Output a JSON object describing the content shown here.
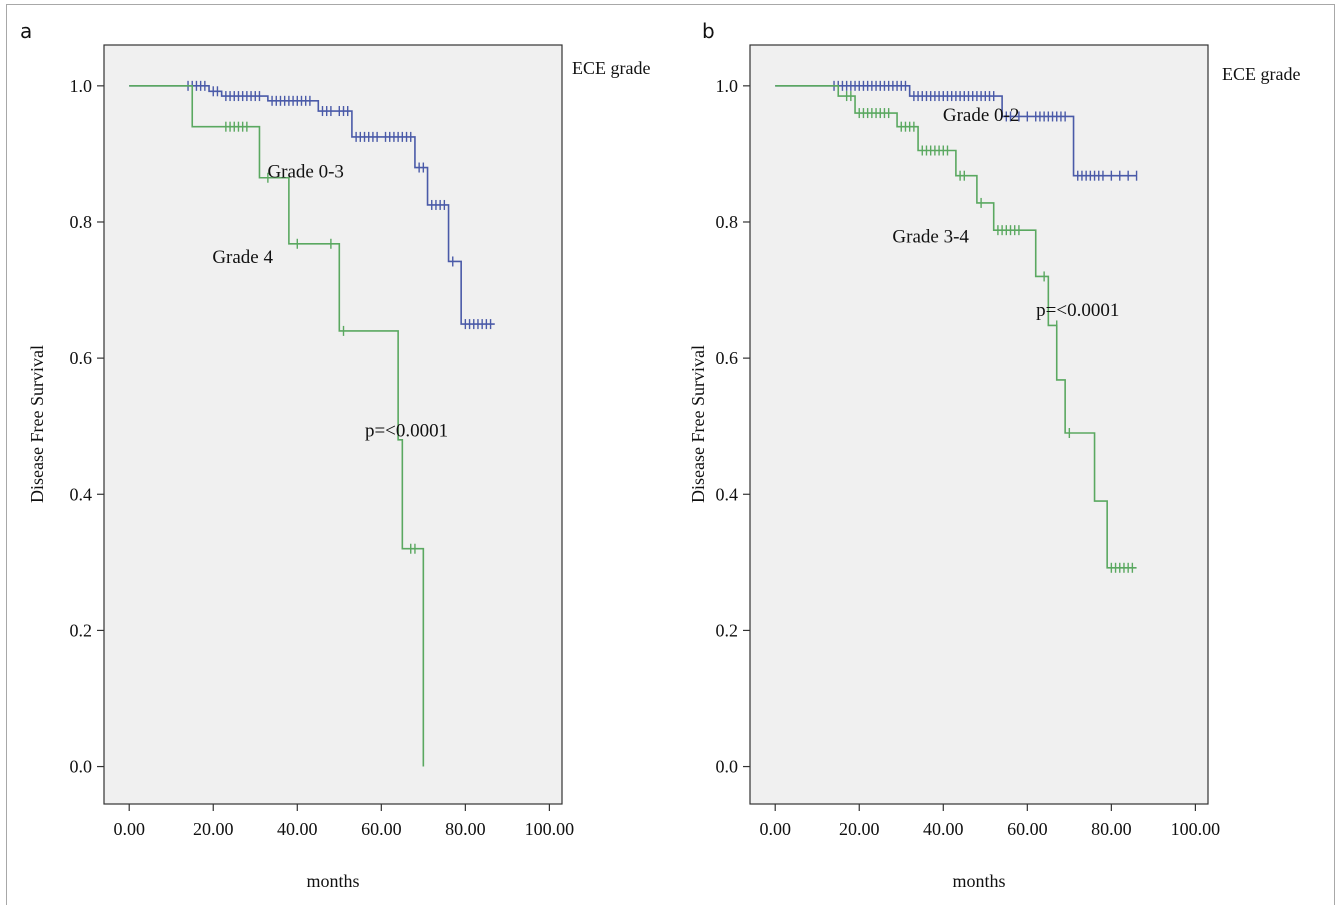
{
  "figure": {
    "panels": [
      "a",
      "b"
    ]
  },
  "chart_data": [
    {
      "panel": "a",
      "type": "line",
      "subtype": "kaplan-meier",
      "title": "",
      "xlabel": "months",
      "ylabel": "Disease Free Survival",
      "xlim": [
        -6,
        103
      ],
      "ylim": [
        -0.055,
        1.06
      ],
      "xticks": [
        0,
        20,
        40,
        60,
        80,
        100
      ],
      "xtick_labels": [
        "0.00",
        "20.00",
        "40.00",
        "60.00",
        "80.00",
        "100.00"
      ],
      "yticks": [
        0,
        0.2,
        0.4,
        0.6,
        0.8,
        1.0
      ],
      "ytick_labels": [
        "0.0",
        "0.2",
        "0.4",
        "0.6",
        "0.8",
        "1.0"
      ],
      "legend_title": "ECE grade",
      "grid": false,
      "series": [
        {
          "name": "Grade 0-3",
          "color": "#4a5aa8",
          "steps": [
            [
              0,
              1.0
            ],
            [
              19,
              0.992
            ],
            [
              22,
              0.985
            ],
            [
              33,
              0.978
            ],
            [
              45,
              0.963
            ],
            [
              53,
              0.925
            ],
            [
              68,
              0.88
            ],
            [
              71,
              0.825
            ],
            [
              76,
              0.742
            ],
            [
              79,
              0.65
            ],
            [
              87,
              0.65
            ]
          ],
          "censored": [
            [
              14,
              1.0
            ],
            [
              15,
              1.0
            ],
            [
              16,
              1.0
            ],
            [
              17,
              1.0
            ],
            [
              18,
              1.0
            ],
            [
              20,
              0.992
            ],
            [
              21,
              0.992
            ],
            [
              23,
              0.985
            ],
            [
              24,
              0.985
            ],
            [
              25,
              0.985
            ],
            [
              26,
              0.985
            ],
            [
              27,
              0.985
            ],
            [
              28,
              0.985
            ],
            [
              29,
              0.985
            ],
            [
              30,
              0.985
            ],
            [
              31,
              0.985
            ],
            [
              34,
              0.978
            ],
            [
              35,
              0.978
            ],
            [
              36,
              0.978
            ],
            [
              37,
              0.978
            ],
            [
              38,
              0.978
            ],
            [
              39,
              0.978
            ],
            [
              40,
              0.978
            ],
            [
              41,
              0.978
            ],
            [
              42,
              0.978
            ],
            [
              43,
              0.978
            ],
            [
              46,
              0.963
            ],
            [
              47,
              0.963
            ],
            [
              48,
              0.963
            ],
            [
              50,
              0.963
            ],
            [
              51,
              0.963
            ],
            [
              52,
              0.963
            ],
            [
              54,
              0.925
            ],
            [
              55,
              0.925
            ],
            [
              56,
              0.925
            ],
            [
              57,
              0.925
            ],
            [
              58,
              0.925
            ],
            [
              59,
              0.925
            ],
            [
              61,
              0.925
            ],
            [
              62,
              0.925
            ],
            [
              63,
              0.925
            ],
            [
              64,
              0.925
            ],
            [
              65,
              0.925
            ],
            [
              66,
              0.925
            ],
            [
              67,
              0.925
            ],
            [
              69,
              0.88
            ],
            [
              70,
              0.88
            ],
            [
              72,
              0.825
            ],
            [
              73,
              0.825
            ],
            [
              74,
              0.825
            ],
            [
              75,
              0.825
            ],
            [
              77,
              0.742
            ],
            [
              80,
              0.65
            ],
            [
              81,
              0.65
            ],
            [
              82,
              0.65
            ],
            [
              83,
              0.65
            ],
            [
              84,
              0.65
            ],
            [
              85,
              0.65
            ],
            [
              86,
              0.65
            ]
          ]
        },
        {
          "name": "Grade 4",
          "color": "#5aa860",
          "steps": [
            [
              0,
              1.0
            ],
            [
              15,
              0.94
            ],
            [
              31,
              0.865
            ],
            [
              38,
              0.768
            ],
            [
              50,
              0.64
            ],
            [
              64,
              0.48
            ],
            [
              65,
              0.32
            ],
            [
              70,
              0.0
            ]
          ],
          "censored": [
            [
              23,
              0.94
            ],
            [
              24,
              0.94
            ],
            [
              25,
              0.94
            ],
            [
              26,
              0.94
            ],
            [
              27,
              0.94
            ],
            [
              28,
              0.94
            ],
            [
              33,
              0.865
            ],
            [
              40,
              0.768
            ],
            [
              48,
              0.768
            ],
            [
              51,
              0.64
            ],
            [
              67,
              0.32
            ],
            [
              68,
              0.32
            ]
          ]
        }
      ],
      "annotations": [
        {
          "text": "Grade 0-3",
          "x": 42,
          "y": 0.865
        },
        {
          "text": "Grade 4",
          "x": 27,
          "y": 0.74
        },
        {
          "text": "p=<0.0001",
          "x": 66,
          "y": 0.485
        }
      ]
    },
    {
      "panel": "b",
      "type": "line",
      "subtype": "kaplan-meier",
      "title": "",
      "xlabel": "months",
      "ylabel": "Disease Free Survival",
      "xlim": [
        -6,
        103
      ],
      "ylim": [
        -0.055,
        1.06
      ],
      "xticks": [
        0,
        20,
        40,
        60,
        80,
        100
      ],
      "xtick_labels": [
        "0.00",
        "20.00",
        "40.00",
        "60.00",
        "80.00",
        "100.00"
      ],
      "yticks": [
        0,
        0.2,
        0.4,
        0.6,
        0.8,
        1.0
      ],
      "ytick_labels": [
        "0.0",
        "0.2",
        "0.4",
        "0.6",
        "0.8",
        "1.0"
      ],
      "legend_title": "ECE grade",
      "grid": false,
      "series": [
        {
          "name": "Grade 0-2",
          "color": "#4a5aa8",
          "steps": [
            [
              0,
              1.0
            ],
            [
              32,
              0.985
            ],
            [
              54,
              0.955
            ],
            [
              71,
              0.868
            ],
            [
              86,
              0.868
            ]
          ],
          "censored": [
            [
              14,
              1.0
            ],
            [
              15,
              1.0
            ],
            [
              16,
              1.0
            ],
            [
              17,
              1.0
            ],
            [
              18,
              1.0
            ],
            [
              19,
              1.0
            ],
            [
              20,
              1.0
            ],
            [
              21,
              1.0
            ],
            [
              22,
              1.0
            ],
            [
              23,
              1.0
            ],
            [
              24,
              1.0
            ],
            [
              25,
              1.0
            ],
            [
              26,
              1.0
            ],
            [
              27,
              1.0
            ],
            [
              28,
              1.0
            ],
            [
              29,
              1.0
            ],
            [
              30,
              1.0
            ],
            [
              31,
              1.0
            ],
            [
              33,
              0.985
            ],
            [
              34,
              0.985
            ],
            [
              35,
              0.985
            ],
            [
              36,
              0.985
            ],
            [
              37,
              0.985
            ],
            [
              38,
              0.985
            ],
            [
              39,
              0.985
            ],
            [
              40,
              0.985
            ],
            [
              41,
              0.985
            ],
            [
              42,
              0.985
            ],
            [
              43,
              0.985
            ],
            [
              44,
              0.985
            ],
            [
              45,
              0.985
            ],
            [
              46,
              0.985
            ],
            [
              47,
              0.985
            ],
            [
              48,
              0.985
            ],
            [
              49,
              0.985
            ],
            [
              50,
              0.985
            ],
            [
              51,
              0.985
            ],
            [
              52,
              0.985
            ],
            [
              55,
              0.955
            ],
            [
              56,
              0.955
            ],
            [
              58,
              0.955
            ],
            [
              60,
              0.955
            ],
            [
              62,
              0.955
            ],
            [
              63,
              0.955
            ],
            [
              64,
              0.955
            ],
            [
              65,
              0.955
            ],
            [
              66,
              0.955
            ],
            [
              67,
              0.955
            ],
            [
              68,
              0.955
            ],
            [
              69,
              0.955
            ],
            [
              72,
              0.868
            ],
            [
              73,
              0.868
            ],
            [
              74,
              0.868
            ],
            [
              75,
              0.868
            ],
            [
              76,
              0.868
            ],
            [
              77,
              0.868
            ],
            [
              78,
              0.868
            ],
            [
              80,
              0.868
            ],
            [
              82,
              0.868
            ],
            [
              84,
              0.868
            ],
            [
              86,
              0.868
            ]
          ]
        },
        {
          "name": "Grade 3-4",
          "color": "#5aa860",
          "steps": [
            [
              0,
              1.0
            ],
            [
              15,
              0.985
            ],
            [
              19,
              0.96
            ],
            [
              29,
              0.94
            ],
            [
              34,
              0.905
            ],
            [
              43,
              0.868
            ],
            [
              48,
              0.828
            ],
            [
              52,
              0.788
            ],
            [
              62,
              0.72
            ],
            [
              65,
              0.648
            ],
            [
              67,
              0.568
            ],
            [
              69,
              0.49
            ],
            [
              76,
              0.39
            ],
            [
              79,
              0.292
            ],
            [
              86,
              0.292
            ]
          ],
          "censored": [
            [
              17,
              0.985
            ],
            [
              18,
              0.985
            ],
            [
              20,
              0.96
            ],
            [
              21,
              0.96
            ],
            [
              22,
              0.96
            ],
            [
              23,
              0.96
            ],
            [
              24,
              0.96
            ],
            [
              25,
              0.96
            ],
            [
              26,
              0.96
            ],
            [
              27,
              0.96
            ],
            [
              30,
              0.94
            ],
            [
              31,
              0.94
            ],
            [
              32,
              0.94
            ],
            [
              33,
              0.94
            ],
            [
              35,
              0.905
            ],
            [
              36,
              0.905
            ],
            [
              37,
              0.905
            ],
            [
              38,
              0.905
            ],
            [
              39,
              0.905
            ],
            [
              40,
              0.905
            ],
            [
              41,
              0.905
            ],
            [
              44,
              0.868
            ],
            [
              45,
              0.868
            ],
            [
              49,
              0.828
            ],
            [
              53,
              0.788
            ],
            [
              54,
              0.788
            ],
            [
              55,
              0.788
            ],
            [
              56,
              0.788
            ],
            [
              57,
              0.788
            ],
            [
              58,
              0.788
            ],
            [
              64,
              0.72
            ],
            [
              67,
              0.648
            ],
            [
              70,
              0.49
            ],
            [
              80,
              0.292
            ],
            [
              81,
              0.292
            ],
            [
              82,
              0.292
            ],
            [
              83,
              0.292
            ],
            [
              84,
              0.292
            ],
            [
              85,
              0.292
            ]
          ]
        }
      ],
      "annotations": [
        {
          "text": "Grade 0-2",
          "x": 49,
          "y": 0.948
        },
        {
          "text": "Grade 3-4",
          "x": 37,
          "y": 0.77
        },
        {
          "text": "p=<0.0001",
          "x": 72,
          "y": 0.662
        }
      ]
    }
  ]
}
